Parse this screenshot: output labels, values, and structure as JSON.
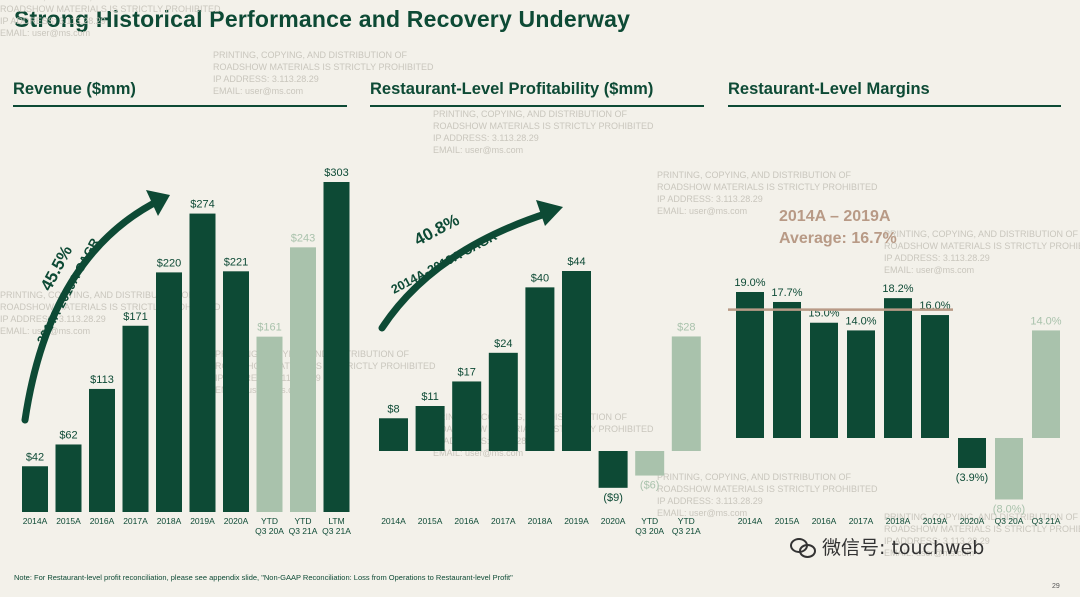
{
  "header": {
    "title": "Strong Historical Performance and Recovery Underway"
  },
  "panels": {
    "revenue_title": "Revenue ($mm)",
    "profit_title": "Restaurant-Level Profitability ($mm)",
    "margin_title": "Restaurant-Level Margins"
  },
  "annotations": {
    "revenue_cagr_value": "45.5%",
    "revenue_cagr_label": "2014A-2019A CAGR",
    "profit_cagr_value": "40.8%",
    "profit_cagr_label": "2014A-2019A CAGR",
    "margin_avg_title": "2014A – 2019A",
    "margin_avg_value": "Average: 16.7%"
  },
  "footnote": "Note: For Restaurant-level profit reconciliation, please see appendix slide, \"Non-GAAP Reconciliation: Loss from Operations to Restaurant-level Profit\"",
  "page_number": "29",
  "wechat": "微信号: touchweb",
  "watermark": {
    "line1": "PRINTING, COPYING, AND DISTRIBUTION OF",
    "line2": "ROADSHOW MATERIALS IS STRICTLY PROHIBITED",
    "line3": "IP ADDRESS: 3.113.28.29",
    "line4": "EMAIL: user@ms.com"
  },
  "colors": {
    "dark": "#0d4a35",
    "light": "#a9c2ac",
    "average_line": "#b89a86",
    "background": "#f3f1ea"
  },
  "chart_data": [
    {
      "type": "bar",
      "title": "Revenue ($mm)",
      "categories": [
        "2014A",
        "2015A",
        "2016A",
        "2017A",
        "2018A",
        "2019A",
        "2020A",
        "YTD Q3 20A",
        "YTD Q3 21A",
        "LTM Q3 21A"
      ],
      "category_lines": [
        [
          "2014A"
        ],
        [
          "2015A"
        ],
        [
          "2016A"
        ],
        [
          "2017A"
        ],
        [
          "2018A"
        ],
        [
          "2019A"
        ],
        [
          "2020A"
        ],
        [
          "YTD",
          "Q3 20A"
        ],
        [
          "YTD",
          "Q3 21A"
        ],
        [
          "LTM",
          "Q3 21A"
        ]
      ],
      "values": [
        42,
        62,
        113,
        171,
        220,
        274,
        221,
        161,
        243,
        303
      ],
      "labels": [
        "$42",
        "$62",
        "$113",
        "$171",
        "$220",
        "$274",
        "$221",
        "$161",
        "$243",
        "$303"
      ],
      "shade": [
        "dark",
        "dark",
        "dark",
        "dark",
        "dark",
        "dark",
        "dark",
        "light",
        "light",
        "dark"
      ],
      "ylim": [
        0,
        303
      ]
    },
    {
      "type": "bar",
      "title": "Restaurant-Level Profitability ($mm)",
      "categories": [
        "2014A",
        "2015A",
        "2016A",
        "2017A",
        "2018A",
        "2019A",
        "2020A",
        "YTD Q3 20A",
        "YTD Q3 21A"
      ],
      "category_lines": [
        [
          "2014A"
        ],
        [
          "2015A"
        ],
        [
          "2016A"
        ],
        [
          "2017A"
        ],
        [
          "2018A"
        ],
        [
          "2019A"
        ],
        [
          "2020A"
        ],
        [
          "YTD",
          "Q3 20A"
        ],
        [
          "YTD",
          "Q3 21A"
        ]
      ],
      "values": [
        8,
        11,
        17,
        24,
        40,
        44,
        -9,
        -6,
        28
      ],
      "labels": [
        "$8",
        "$11",
        "$17",
        "$24",
        "$40",
        "$44",
        "($9)",
        "($6)",
        "$28"
      ],
      "shade": [
        "dark",
        "dark",
        "dark",
        "dark",
        "dark",
        "dark",
        "dark",
        "light",
        "light"
      ],
      "ylim": [
        -9,
        44
      ]
    },
    {
      "type": "bar",
      "title": "Restaurant-Level Margins",
      "categories": [
        "2014A",
        "2015A",
        "2016A",
        "2017A",
        "2018A",
        "2019A",
        "2020A",
        "Q3 20A",
        "Q3 21A"
      ],
      "category_lines": [
        [
          "2014A"
        ],
        [
          "2015A"
        ],
        [
          "2016A"
        ],
        [
          "2017A"
        ],
        [
          "2018A"
        ],
        [
          "2019A"
        ],
        [
          "2020A"
        ],
        [
          "Q3 20A"
        ],
        [
          "Q3 21A"
        ]
      ],
      "values": [
        19.0,
        17.7,
        15.0,
        14.0,
        18.2,
        16.0,
        -3.9,
        -8.0,
        14.0
      ],
      "labels": [
        "19.0%",
        "17.7%",
        "15.0%",
        "14.0%",
        "18.2%",
        "16.0%",
        "(3.9%)",
        "(8.0%)",
        "14.0%"
      ],
      "shade": [
        "dark",
        "dark",
        "dark",
        "dark",
        "dark",
        "dark",
        "dark",
        "light",
        "light"
      ],
      "average": 16.7,
      "ylim": [
        -8,
        19
      ]
    }
  ]
}
